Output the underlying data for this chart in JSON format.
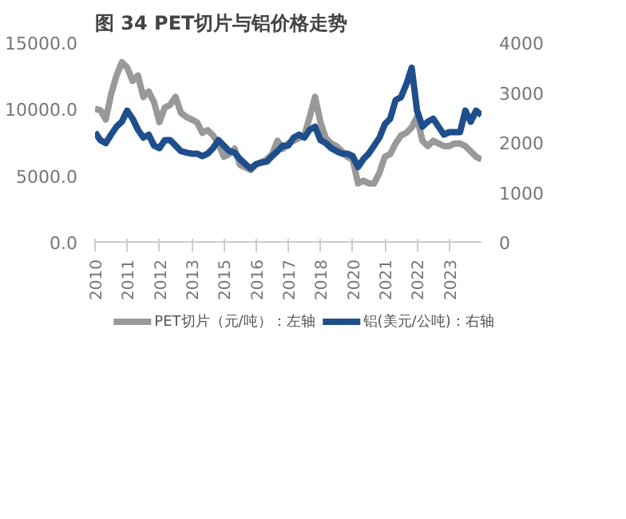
{
  "chart_data": {
    "type": "line",
    "title": "图 34 PET切片与铝价格走势",
    "categories": [
      "2010",
      null,
      null,
      null,
      null,
      null,
      "2011",
      null,
      null,
      null,
      null,
      null,
      "2012",
      null,
      null,
      null,
      null,
      null,
      "2013",
      null,
      null,
      null,
      null,
      null,
      "2015",
      null,
      null,
      null,
      null,
      null,
      "2016",
      null,
      null,
      null,
      null,
      null,
      "2017",
      null,
      null,
      null,
      null,
      null,
      "2018",
      null,
      null,
      null,
      null,
      null,
      "2020",
      null,
      null,
      null,
      null,
      null,
      "2021",
      null,
      null,
      null,
      null,
      null,
      "2022",
      null,
      null,
      null,
      null,
      null,
      "2023",
      null,
      null,
      null,
      null,
      null,
      null
    ],
    "series": [
      {
        "name": "PET切片（元/吨）：左轴",
        "color": "#999999",
        "values": [
          10000,
          9900,
          9200,
          11100,
          12500,
          13500,
          13100,
          12100,
          12500,
          10900,
          11300,
          10500,
          9000,
          10100,
          10300,
          10900,
          9700,
          9400,
          9200,
          9000,
          8200,
          8400,
          8000,
          7400,
          6400,
          6600,
          7000,
          5800,
          5600,
          5400,
          5800,
          6000,
          6200,
          6600,
          7600,
          7000,
          7400,
          7600,
          7800,
          8000,
          9400,
          10900,
          9000,
          7800,
          7400,
          7200,
          6800,
          6400,
          6200,
          4400,
          4600,
          4400,
          4400,
          5200,
          6400,
          6600,
          7400,
          8000,
          8200,
          8600,
          9400,
          7600,
          7200,
          7600,
          7400,
          7200,
          7200,
          7400,
          7400,
          7200,
          6800,
          6400,
          6200
        ]
      },
      {
        "name": "铝(美元/公吨)：右轴",
        "color": "#1f4e8c",
        "axis": "y2",
        "values": [
          2200,
          2040,
          1980,
          2150,
          2310,
          2410,
          2630,
          2470,
          2250,
          2090,
          2150,
          1930,
          1880,
          2040,
          2040,
          1930,
          1820,
          1790,
          1770,
          1770,
          1720,
          1770,
          1880,
          2040,
          1930,
          1820,
          1790,
          1660,
          1560,
          1470,
          1560,
          1590,
          1610,
          1720,
          1820,
          1930,
          1930,
          2090,
          2150,
          2090,
          2250,
          2310,
          2040,
          1980,
          1880,
          1820,
          1770,
          1770,
          1720,
          1500,
          1660,
          1770,
          1930,
          2090,
          2360,
          2470,
          2840,
          2900,
          3160,
          3490,
          2630,
          2310,
          2410,
          2470,
          2310,
          2150,
          2200,
          2200,
          2200,
          2630,
          2410,
          2630,
          2540
        ]
      }
    ],
    "ylim": [
      0,
      15000
    ],
    "yticks": [
      {
        "value": 0,
        "label": "0.0"
      },
      {
        "value": 5000,
        "label": "5000.0"
      },
      {
        "value": 10000,
        "label": "10000.0"
      },
      {
        "value": 15000,
        "label": "15000.0"
      }
    ],
    "y2lim": [
      0,
      4000
    ],
    "y2ticks": [
      0,
      1000,
      2000,
      3000,
      4000
    ],
    "grid": false,
    "legend": "bottom"
  }
}
